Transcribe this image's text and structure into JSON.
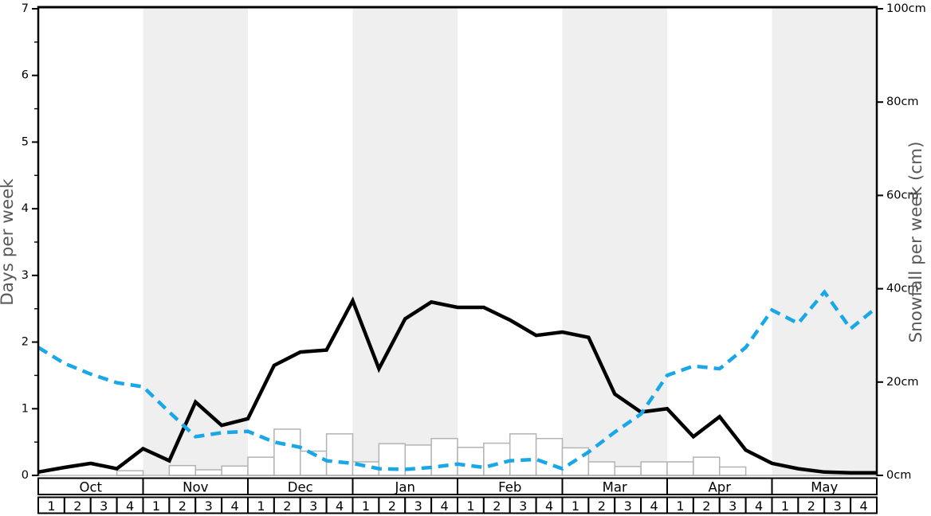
{
  "chart_data": {
    "type": "line",
    "title": "",
    "description": "Weekly snow chart: two line series on left axis (days per week) and snowfall bars on right axis (cm), Oct-May, 4 weeks per month, 33 line points at week boundaries",
    "left_axis": {
      "label": "Days per week",
      "min": 0,
      "max": 7,
      "major_tick_step": 1,
      "minor_tick_step": 0.5,
      "tick_labels": [
        "0",
        "1",
        "2",
        "3",
        "4",
        "5",
        "6",
        "7"
      ],
      "tick_values": [
        0,
        1,
        2,
        3,
        4,
        5,
        6,
        7
      ]
    },
    "right_axis": {
      "label": "Snowfall per week (cm)",
      "min": 0,
      "max": 100,
      "tick_labels": [
        "0cm",
        "20cm",
        "40cm",
        "60cm",
        "80cm",
        "100cm"
      ],
      "tick_values": [
        0,
        20,
        40,
        60,
        80,
        100
      ]
    },
    "months": [
      "Oct",
      "Nov",
      "Dec",
      "Jan",
      "Feb",
      "Mar",
      "Apr",
      "May"
    ],
    "shaded_months": [
      "Nov",
      "Jan",
      "Mar",
      "May"
    ],
    "week_labels": [
      "1",
      "2",
      "3",
      "4"
    ],
    "weeks_total": 32,
    "series": [
      {
        "name": "days-per-week-black-solid",
        "axis": "left",
        "style": "solid",
        "values": [
          0.05,
          0.12,
          0.18,
          0.1,
          0.4,
          0.22,
          1.1,
          0.75,
          0.85,
          1.65,
          1.85,
          1.88,
          2.62,
          1.6,
          2.35,
          2.6,
          2.52,
          2.52,
          2.33,
          2.1,
          2.15,
          2.07,
          1.22,
          0.95,
          1.0,
          0.58,
          0.88,
          0.38,
          0.18,
          0.1,
          0.05,
          0.04,
          0.04
        ]
      },
      {
        "name": "days-per-week-blue-dashed",
        "axis": "left",
        "style": "dashed",
        "values": [
          1.92,
          1.68,
          1.52,
          1.39,
          1.33,
          0.95,
          0.58,
          0.64,
          0.66,
          0.5,
          0.42,
          0.22,
          0.18,
          0.1,
          0.09,
          0.12,
          0.17,
          0.12,
          0.22,
          0.24,
          0.1,
          0.35,
          0.65,
          0.92,
          1.5,
          1.64,
          1.6,
          1.92,
          2.48,
          2.28,
          2.75,
          2.2,
          2.52
        ]
      }
    ],
    "bars": {
      "name": "snowfall-per-week-cm",
      "axis": "right",
      "values": [
        0,
        0,
        0,
        1,
        0,
        2.1,
        1.2,
        2,
        3.9,
        9.9,
        5.2,
        8.9,
        2.9,
        6.8,
        6.5,
        7.9,
        6,
        6.9,
        8.9,
        7.9,
        5.9,
        2.9,
        1.9,
        2.9,
        2.9,
        3.9,
        1.8,
        0,
        0,
        0,
        0,
        0
      ]
    },
    "legend": "none",
    "grid": "off"
  },
  "colors": {
    "line_black": "#000000",
    "line_blue": "#1aa7e8",
    "band_gray": "#efefef",
    "bar_fill": "#ffffff",
    "bar_stroke": "#b3b3b3",
    "axis_title_gray": "#595959",
    "spine_black": "#000000",
    "baseline_gray": "#999999",
    "table_border": "#000000",
    "table_fill": "#ffffff"
  }
}
